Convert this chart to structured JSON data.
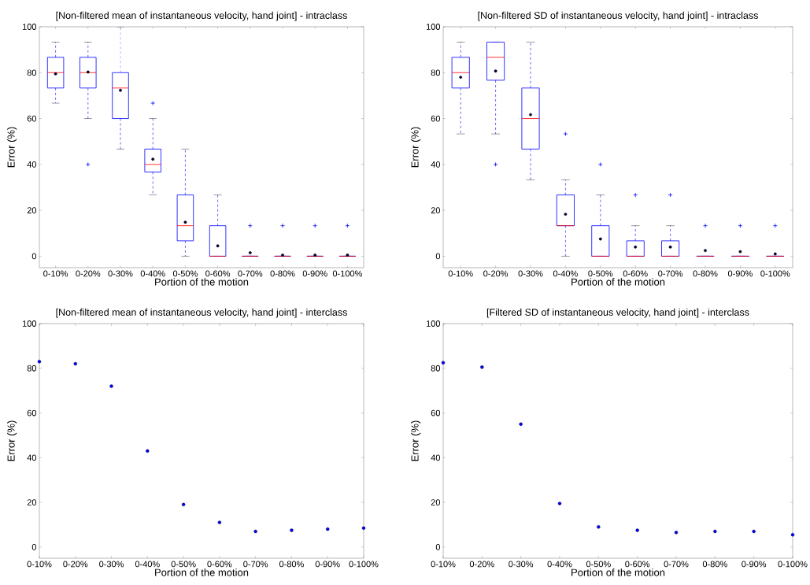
{
  "chart_data": [
    {
      "type": "box",
      "title": "[Non-filtered mean of instantaneous velocity, hand joint] - intraclass",
      "xlabel": "Portion of the motion",
      "ylabel": "Error (%)",
      "color": "#0000ff",
      "categories": [
        "0-10%",
        "0-20%",
        "0-30%",
        "0-40%",
        "0-50%",
        "0-60%",
        "0-70%",
        "0-80%",
        "0-90%",
        "0-100%"
      ],
      "ylim": [
        -5,
        100
      ],
      "yticks": [
        0,
        20,
        40,
        60,
        80,
        100
      ],
      "boxes": [
        {
          "low": 66.7,
          "q1": 73.3,
          "median": 80,
          "q3": 86.7,
          "high": 93.3,
          "mean": 79.5
        },
        {
          "low": 60,
          "q1": 73.3,
          "median": 80,
          "q3": 86.7,
          "high": 93.3,
          "mean": 80.3,
          "outliers": [
            40
          ]
        },
        {
          "low": 46.7,
          "q1": 60,
          "median": 73.3,
          "q3": 80,
          "high": 100,
          "mean": 72.3
        },
        {
          "low": 26.7,
          "q1": 36.7,
          "median": 40,
          "q3": 46.7,
          "high": 60,
          "mean": 42.3,
          "outliers": [
            66.7
          ]
        },
        {
          "low": 0,
          "q1": 6.7,
          "median": 13.3,
          "q3": 26.7,
          "high": 46.7,
          "mean": 14.8
        },
        {
          "low": 0,
          "q1": 0,
          "median": 0,
          "q3": 13.3,
          "high": 26.7,
          "mean": 4.5
        },
        {
          "low": 0,
          "q1": 0,
          "median": 0,
          "q3": 0,
          "high": 0,
          "mean": 1.5,
          "outliers": [
            13.3
          ]
        },
        {
          "low": 0,
          "q1": 0,
          "median": 0,
          "q3": 0,
          "high": 0,
          "mean": 0.5,
          "outliers": [
            13.3
          ]
        },
        {
          "low": 0,
          "q1": 0,
          "median": 0,
          "q3": 0,
          "high": 0,
          "mean": 0.5,
          "outliers": [
            13.3
          ]
        },
        {
          "low": 0,
          "q1": 0,
          "median": 0,
          "q3": 0,
          "high": 0,
          "mean": 0.5,
          "outliers": [
            13.3
          ]
        }
      ]
    },
    {
      "type": "box",
      "title": "[Non-filtered SD of instantaneous velocity, hand joint] - intraclass",
      "xlabel": "Portion of the motion",
      "ylabel": "Error (%)",
      "color": "#0000ff",
      "categories": [
        "0-10%",
        "0-20%",
        "0-30%",
        "0-40%",
        "0-50%",
        "0-60%",
        "0-70%",
        "0-80%",
        "0-90%",
        "0-100%"
      ],
      "ylim": [
        -5,
        100
      ],
      "yticks": [
        0,
        20,
        40,
        60,
        80,
        100
      ],
      "boxes": [
        {
          "low": 53.3,
          "q1": 73.3,
          "median": 80,
          "q3": 86.7,
          "high": 93.3,
          "mean": 78
        },
        {
          "low": 53.3,
          "q1": 76.7,
          "median": 86.7,
          "q3": 93.3,
          "high": 93.3,
          "mean": 80.7,
          "outliers": [
            40
          ]
        },
        {
          "low": 33.3,
          "q1": 46.7,
          "median": 60,
          "q3": 73.3,
          "high": 93.3,
          "mean": 61.7
        },
        {
          "low": 0,
          "q1": 13.3,
          "median": 13.3,
          "q3": 26.7,
          "high": 33.3,
          "mean": 18.3,
          "outliers": [
            53.3
          ]
        },
        {
          "low": 0,
          "q1": 0,
          "median": 0,
          "q3": 13.3,
          "high": 26.7,
          "mean": 7.5,
          "outliers": [
            40
          ]
        },
        {
          "low": 0,
          "q1": 0,
          "median": 0,
          "q3": 6.7,
          "high": 13.3,
          "mean": 4,
          "outliers": [
            26.7
          ]
        },
        {
          "low": 0,
          "q1": 0,
          "median": 0,
          "q3": 6.7,
          "high": 13.3,
          "mean": 4,
          "outliers": [
            26.7
          ]
        },
        {
          "low": 0,
          "q1": 0,
          "median": 0,
          "q3": 0,
          "high": 0,
          "mean": 2.5,
          "outliers": [
            13.3
          ]
        },
        {
          "low": 0,
          "q1": 0,
          "median": 0,
          "q3": 0,
          "high": 0,
          "mean": 2,
          "outliers": [
            13.3
          ]
        },
        {
          "low": 0,
          "q1": 0,
          "median": 0,
          "q3": 0,
          "high": 0,
          "mean": 1,
          "outliers": [
            13.3
          ]
        }
      ]
    },
    {
      "type": "scatter",
      "title": "[Non-filtered mean of instantaneous velocity, hand joint] - interclass",
      "xlabel": "Portion of the motion",
      "ylabel": "Error (%)",
      "color": "#0000ff",
      "marker": "circle",
      "categories": [
        "0-10%",
        "0-20%",
        "0-30%",
        "0-40%",
        "0-50%",
        "0-60%",
        "0-70%",
        "0-80%",
        "0-90%",
        "0-100%"
      ],
      "values": [
        83,
        82,
        72,
        43,
        19,
        11,
        7,
        7.5,
        8,
        8.5
      ],
      "ylim": [
        -5,
        100
      ],
      "yticks": [
        0,
        20,
        40,
        60,
        80,
        100
      ]
    },
    {
      "type": "scatter",
      "title": "[Filtered SD of instantaneous velocity, hand joint] - interclass",
      "xlabel": "Portion of the motion",
      "ylabel": "Error (%)",
      "color": "#0000ff",
      "marker": "circle",
      "categories": [
        "0-10%",
        "0-20%",
        "0-30%",
        "0-40%",
        "0-50%",
        "0-60%",
        "0-70%",
        "0-80%",
        "0-90%",
        "0-100%"
      ],
      "values": [
        82.5,
        80.5,
        55,
        19.5,
        9,
        7.5,
        6.5,
        7,
        7,
        5.5
      ],
      "ylim": [
        -5,
        100
      ],
      "yticks": [
        0,
        20,
        40,
        60,
        80,
        100
      ]
    }
  ]
}
